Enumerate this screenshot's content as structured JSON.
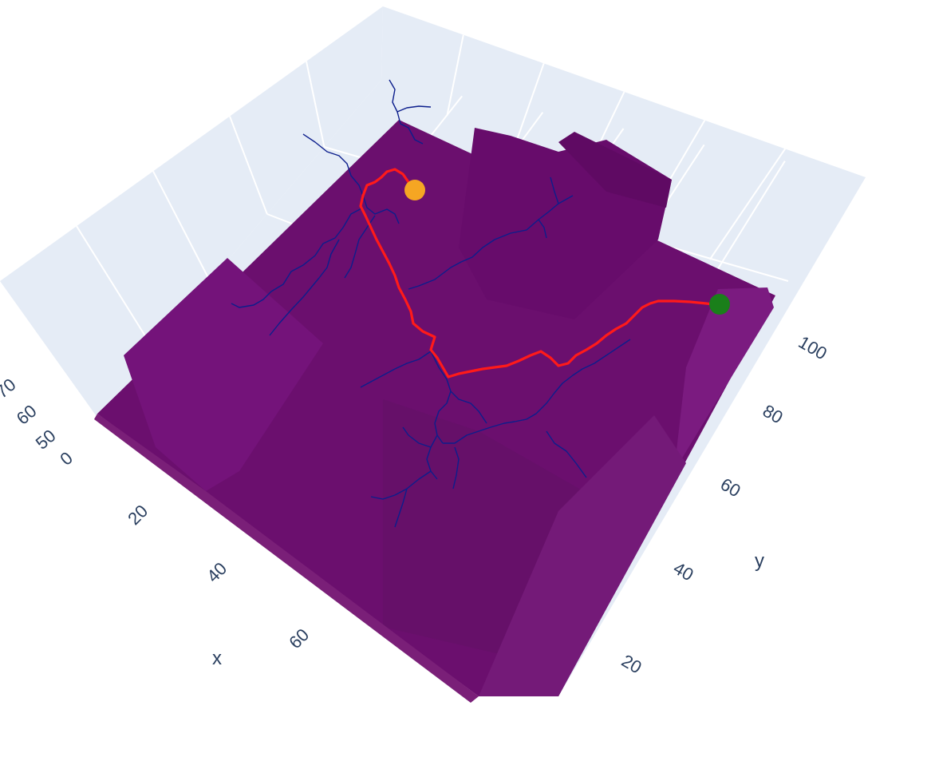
{
  "chart_data": {
    "type": "scatter3d",
    "title": "",
    "xlabel": "x",
    "ylabel": "y",
    "zlabel": "",
    "x_ticks": [
      "20",
      "40",
      "60"
    ],
    "y_ticks": [
      "20",
      "40",
      "60",
      "80",
      "100"
    ],
    "z_ticks": [
      "0",
      "50",
      "60",
      "70"
    ],
    "xlim": [
      0,
      80
    ],
    "ylim": [
      0,
      115
    ],
    "zlim": [
      0,
      75
    ],
    "scene_background": "#e5ecf6",
    "grid": true,
    "series": [
      {
        "mode": "mesh",
        "color": "#6b0f6e"
      },
      {
        "mode": "lines",
        "color": "#0c1e8c"
      },
      {
        "mode": "lines",
        "color": "#ff1a1a"
      },
      {
        "mode": "markers",
        "color": "#f5a623"
      },
      {
        "mode": "markers",
        "color": "#1a7f1a"
      }
    ]
  }
}
